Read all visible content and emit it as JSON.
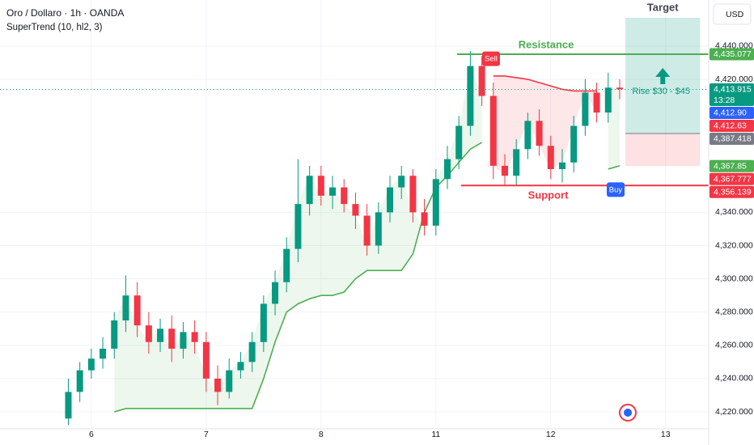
{
  "chart_data": {
    "type": "candlestick",
    "title": "Oro / Dollaro · 1h · OANDA",
    "indicator": "SuperTrend (10, hl2, 3)",
    "currency": "USD",
    "up_color": "#089981",
    "down_color": "#f23645",
    "x": [
      0,
      2,
      4,
      6,
      8,
      10,
      12,
      14,
      16,
      18,
      20,
      22,
      24,
      26,
      28,
      30,
      32,
      34,
      36,
      38,
      40,
      42,
      44,
      46,
      48,
      50,
      52,
      54,
      56,
      58,
      60,
      62,
      64,
      66,
      68,
      70,
      72,
      74,
      76,
      78,
      80,
      82,
      84,
      86,
      88,
      90,
      92,
      94,
      96
    ],
    "open": [
      4216,
      4232,
      4245,
      4252,
      4258,
      4275,
      4290,
      4272,
      4262,
      4270,
      4258,
      4268,
      4262,
      4240,
      4232,
      4245,
      4250,
      4262,
      4285,
      4298,
      4318,
      4345,
      4362,
      4350,
      4355,
      4345,
      4338,
      4320,
      4340,
      4355,
      4362,
      4340,
      4332,
      4360,
      4372,
      4392,
      4428,
      4410,
      4368,
      4362,
      4378,
      4395,
      4380,
      4366,
      4370,
      4392,
      4412,
      4400,
      4415
    ],
    "high": [
      4240,
      4250,
      4258,
      4265,
      4280,
      4302,
      4298,
      4280,
      4276,
      4278,
      4274,
      4275,
      4268,
      4248,
      4252,
      4256,
      4268,
      4290,
      4305,
      4325,
      4372,
      4368,
      4368,
      4362,
      4360,
      4352,
      4345,
      4346,
      4362,
      4368,
      4366,
      4348,
      4366,
      4380,
      4398,
      4437,
      4434,
      4418,
      4375,
      4384,
      4400,
      4402,
      4386,
      4378,
      4398,
      4420,
      4418,
      4424,
      4420
    ],
    "low": [
      4212,
      4226,
      4240,
      4246,
      4252,
      4268,
      4265,
      4255,
      4256,
      4250,
      4252,
      4255,
      4232,
      4224,
      4228,
      4240,
      4244,
      4256,
      4278,
      4292,
      4310,
      4338,
      4344,
      4342,
      4340,
      4330,
      4314,
      4315,
      4334,
      4348,
      4334,
      4326,
      4326,
      4354,
      4366,
      4386,
      4404,
      4360,
      4356,
      4356,
      4372,
      4374,
      4360,
      4358,
      4364,
      4386,
      4394,
      4394,
      4408
    ],
    "close": [
      4232,
      4245,
      4252,
      4258,
      4275,
      4290,
      4272,
      4262,
      4270,
      4258,
      4268,
      4262,
      4240,
      4232,
      4245,
      4250,
      4262,
      4285,
      4298,
      4318,
      4345,
      4362,
      4350,
      4355,
      4345,
      4338,
      4320,
      4340,
      4355,
      4362,
      4340,
      4332,
      4360,
      4372,
      4392,
      4428,
      4410,
      4368,
      4362,
      4378,
      4395,
      4380,
      4366,
      4370,
      4392,
      4412,
      4400,
      4415,
      4414
    ],
    "supertrend_up": [
      null,
      null,
      null,
      null,
      4220,
      4222,
      4222,
      4222,
      4222,
      4222,
      4222,
      4222,
      4222,
      4222,
      4222,
      4222,
      4222,
      4240,
      4262,
      4280,
      4285,
      4288,
      4290,
      4290,
      4292,
      4300,
      4305,
      4305,
      4305,
      4305,
      4315,
      4340,
      4355,
      4362,
      4370,
      4378,
      4382,
      null,
      null,
      null,
      null,
      null,
      null,
      null,
      null,
      null,
      null,
      4366,
      4368
    ],
    "supertrend_down": [
      null,
      null,
      null,
      null,
      null,
      null,
      null,
      null,
      null,
      null,
      null,
      null,
      null,
      null,
      null,
      null,
      null,
      null,
      null,
      null,
      null,
      null,
      null,
      null,
      null,
      null,
      null,
      null,
      null,
      null,
      null,
      null,
      null,
      null,
      null,
      null,
      null,
      4422,
      4422,
      4421,
      4420,
      4418,
      4416,
      4414,
      4413,
      4413,
      4413,
      null,
      null
    ],
    "supertrend_up_color": "#4caf50",
    "supertrend_down_color": "#f23645",
    "xlim": [
      -11.9,
      111.5
    ],
    "xticks": [
      {
        "value": 4,
        "label": "6"
      },
      {
        "value": 24,
        "label": "7"
      },
      {
        "value": 44,
        "label": "8"
      },
      {
        "value": 64,
        "label": "11"
      },
      {
        "value": 84,
        "label": "12"
      },
      {
        "value": 104,
        "label": "13"
      }
    ],
    "ylim": [
      4209.8,
      4467.7
    ],
    "yticks": [
      {
        "value": 4220,
        "label": "4,220.000"
      },
      {
        "value": 4240,
        "label": "4,240.000"
      },
      {
        "value": 4260,
        "label": "4,260.000"
      },
      {
        "value": 4280,
        "label": "4,280.000"
      },
      {
        "value": 4300,
        "label": "4,300.000"
      },
      {
        "value": 4320,
        "label": "4,320.000"
      },
      {
        "value": 4340,
        "label": "4,340.000"
      },
      {
        "value": 4420,
        "label": "4,420.000"
      },
      {
        "value": 4440,
        "label": "4,440.000"
      }
    ],
    "grid": true,
    "price_labels": [
      {
        "value": 4435.077,
        "label": "4,435.077",
        "color": "#4caf50"
      },
      {
        "value": 4413.915,
        "label": "4,413.915",
        "sub": "13:28",
        "color": "#089981"
      },
      {
        "value": 4412.9,
        "label": "4,412.90",
        "color": "#2962ff"
      },
      {
        "value": 4412.63,
        "label": "4,412.63",
        "color": "#f23645"
      },
      {
        "value": 4387.418,
        "label": "4,387.418",
        "color": "#787b86"
      },
      {
        "value": 4367.85,
        "label": "4,367.85",
        "color": "#4caf50"
      },
      {
        "value": 4367.777,
        "label": "4,367.777",
        "color": "#f23645"
      },
      {
        "value": 4356.139,
        "label": "4,356.139",
        "color": "#f23645"
      }
    ],
    "last_price": 4413.915,
    "resistance": {
      "label": "Resistance",
      "value": 4435.077,
      "from_x": 67.7,
      "color": "#4caf50"
    },
    "support": {
      "label": "Support",
      "value": 4356.139,
      "from_x": 68.4,
      "color": "#f23645"
    },
    "target": {
      "label": "Target",
      "from_x": 97,
      "to_x": 110,
      "top": 4457,
      "entry": 4387.418,
      "stop": 4367.85,
      "note": "Rise $30 - $45"
    },
    "sell": {
      "label": "Sell",
      "x": 73.6,
      "price": 4428
    },
    "buy": {
      "label": "Buy",
      "x": 95.3,
      "price": 4360
    }
  }
}
